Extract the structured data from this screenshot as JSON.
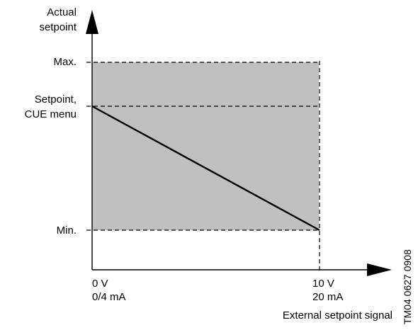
{
  "y_axis": {
    "label_line1": "Actual",
    "label_line2": "setpoint"
  },
  "y_levels": {
    "max": "Max.",
    "setpoint_line1": "Setpoint,",
    "setpoint_line2": "CUE menu",
    "min": "Min."
  },
  "x_axis": {
    "start_line1": "0 V",
    "start_line2": "0/4 mA",
    "end_line1": "10 V",
    "end_line2": "20 mA",
    "title": "External setpoint signal"
  },
  "drawing_number": "TM04 0627 0908",
  "colors": {
    "band_fill": "#c0c0c0",
    "line": "#000000"
  }
}
